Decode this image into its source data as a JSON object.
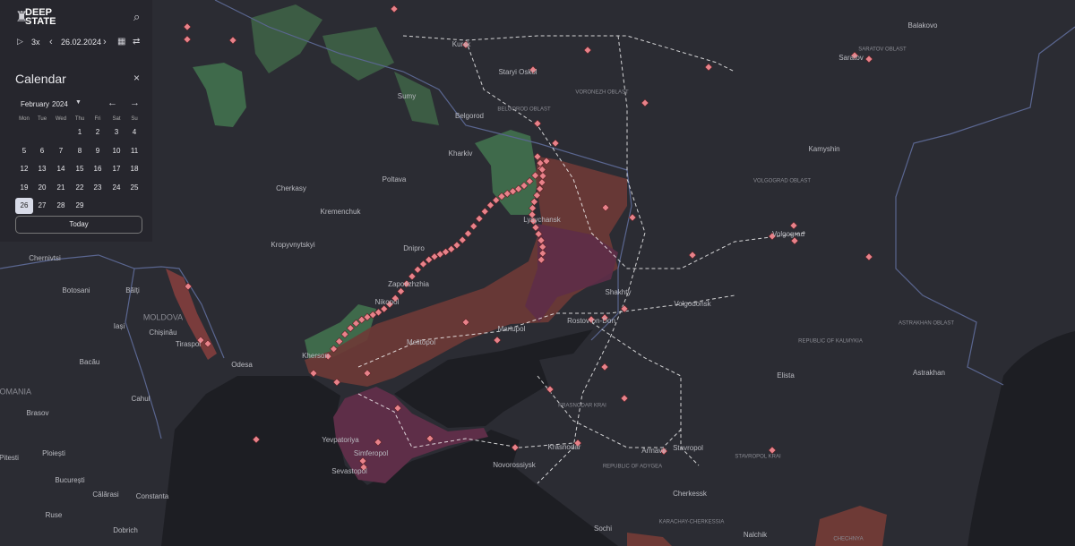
{
  "header": {
    "logo": [
      "DEEP",
      "STATE"
    ]
  },
  "toolbar": {
    "speed": "3x",
    "date": "26.02.2024"
  },
  "calendar": {
    "title": "Calendar",
    "month": "February",
    "year": "2024",
    "weekdays": [
      "Mon",
      "Tue",
      "Wed",
      "Thu",
      "Fri",
      "Sat",
      "Su"
    ],
    "weeks": [
      [
        null,
        null,
        null,
        1,
        2,
        3,
        4
      ],
      [
        5,
        6,
        7,
        8,
        9,
        10,
        11
      ],
      [
        12,
        13,
        14,
        15,
        16,
        17,
        18
      ],
      [
        19,
        20,
        21,
        22,
        23,
        24,
        25
      ],
      [
        26,
        27,
        28,
        29,
        null,
        null,
        null
      ]
    ],
    "selected": 26,
    "today_button": "Today"
  },
  "map": {
    "cities": [
      "Kursk",
      "Staryi Oskol",
      "Sumy",
      "Belgorod",
      "Kharkiv",
      "Poltava",
      "Cherkasy",
      "Kremenchuk",
      "Kropyvnytskyi",
      "Dnipro",
      "Zaporizhzhia",
      "Nikopol",
      "Melitopol",
      "Mariupol",
      "Kherson",
      "Odesa",
      "Yevpatoriya",
      "Simferopol",
      "Sevastopol",
      "Novorossiysk",
      "Krasnodar",
      "Rostov-on-Don",
      "Shakhty",
      "Volgodonsk",
      "Volgograd",
      "Kamyshin",
      "Elista",
      "Astrakhan",
      "Stavropol",
      "Armavir",
      "Cherkessk",
      "Nalchik",
      "Sochi",
      "Lysychansk",
      "Balakovo",
      "Saratov",
      "Chernivtsi",
      "Botosani",
      "Bălți",
      "Iași",
      "Chișinău",
      "Tiraspol",
      "Bacău",
      "Cahul",
      "Brasov",
      "Ploiești",
      "Pitesti",
      "București",
      "Călărasi",
      "Constanta",
      "Ruse",
      "Dobrich"
    ],
    "regions": [
      "BELGOROD OBLAST",
      "VORONEZH OBLAST",
      "VOLGOGRAD OBLAST",
      "REPUBLIC OF KALMYKIA",
      "ASTRAKHAN OBLAST",
      "KRASNODAR KRAI",
      "STAVROPOL KRAI",
      "REPUBLIC OF ADYGEA",
      "SARATOV OBLAST",
      "KARACHAY-CHERKESSIA",
      "CHECHNYA",
      "MOLDOVA",
      "ROMANIA"
    ]
  }
}
